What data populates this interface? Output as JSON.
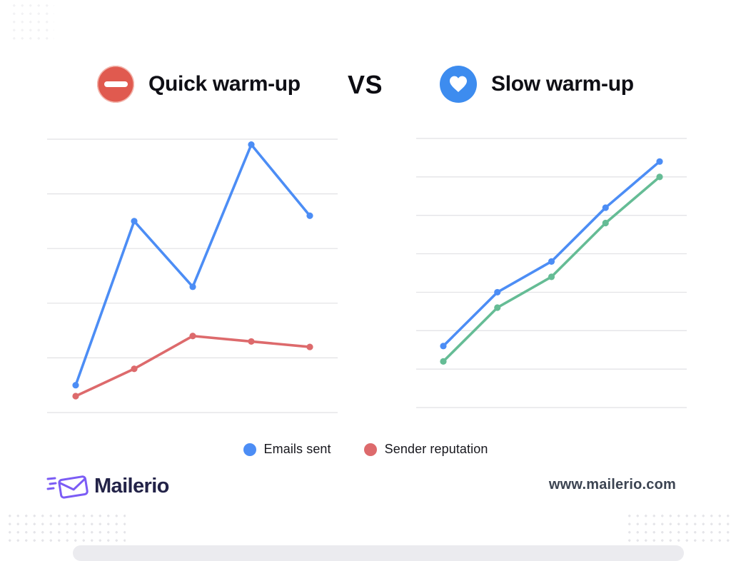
{
  "header": {
    "left": {
      "icon": "no-entry-icon",
      "title": "Quick warm-up"
    },
    "vs_label": "VS",
    "right": {
      "icon": "heart-icon",
      "title": "Slow warm-up"
    }
  },
  "legend": [
    {
      "label": "Emails sent",
      "color": "#4c8df5"
    },
    {
      "label": "Sender reputation",
      "color": "#dd6a6c"
    }
  ],
  "footer": {
    "brand": "Mailerio",
    "website": "www.mailerio.com"
  },
  "colors": {
    "emails_sent_line": "#4c8df5",
    "sender_reputation_bad_line": "#dd6a6c",
    "sender_reputation_good_line": "#65bc95",
    "gridline": "#e1e1e4",
    "no_entry_badge": "#e05a4f",
    "heart_badge": "#3d8cef",
    "logo_purple": "#7b5cf5",
    "logo_navy": "#232348"
  },
  "chart_data": [
    {
      "type": "line",
      "title": "Quick warm-up",
      "x": [
        1,
        2,
        3,
        4,
        5
      ],
      "xlabel": "",
      "ylabel": "",
      "ylim": [
        0,
        5
      ],
      "gridlines": 6,
      "grid": true,
      "axis_tick_labels_visible": false,
      "legend_position": "bottom-center-shared",
      "series": [
        {
          "name": "Emails sent",
          "color": "#4c8df5",
          "values": [
            0.5,
            3.5,
            2.3,
            4.9,
            3.6
          ]
        },
        {
          "name": "Sender reputation",
          "color": "#dd6a6c",
          "values": [
            0.3,
            0.8,
            1.4,
            1.3,
            1.2
          ]
        }
      ]
    },
    {
      "type": "line",
      "title": "Slow warm-up",
      "x": [
        1,
        2,
        3,
        4,
        5
      ],
      "xlabel": "",
      "ylabel": "",
      "ylim": [
        0,
        7
      ],
      "gridlines": 8,
      "grid": true,
      "axis_tick_labels_visible": false,
      "legend_position": "bottom-center-shared",
      "series": [
        {
          "name": "Emails sent",
          "color": "#4c8df5",
          "values": [
            1.6,
            3.0,
            3.8,
            5.2,
            6.4
          ]
        },
        {
          "name": "Sender reputation",
          "color": "#65bc95",
          "values": [
            1.2,
            2.6,
            3.4,
            4.8,
            6.0
          ]
        }
      ]
    }
  ]
}
